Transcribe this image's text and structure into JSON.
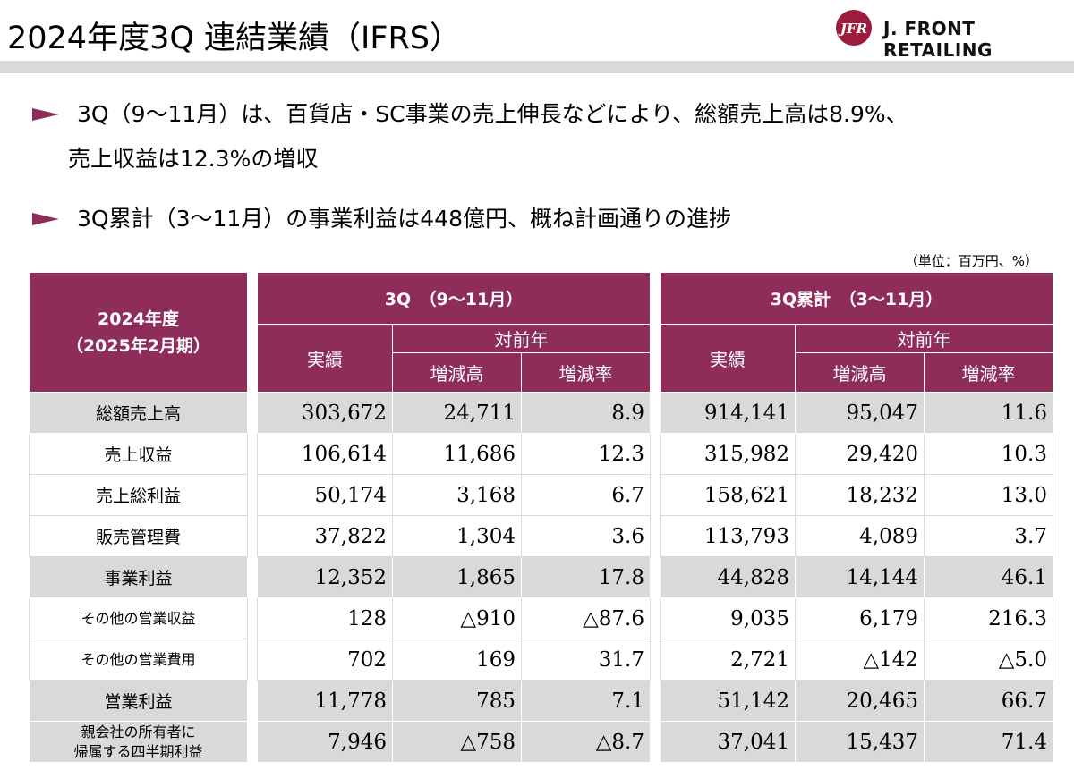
{
  "header": {
    "title": "2024年度3Q 連結業績（IFRS）",
    "logo_mark_text": "JFR",
    "logo_text": "J. FRONT RETAILING"
  },
  "bullets": [
    {
      "line1": "3Q（9～11月）は、百貨店・SC事業の売上伸長などにより、総額売上高は8.9%、",
      "line2": "売上収益は12.3%の増収"
    },
    {
      "line1": "3Q累計（3～11月）の事業利益は448億円、概ね計画通りの進捗"
    }
  ],
  "unit_note": "（単位：百万円、%）",
  "table": {
    "corner_line1": "2024年度",
    "corner_line2": "（2025年2月期）",
    "group1": "3Q　（9～11月）",
    "group2": "3Q累計　（3～11月）",
    "actual": "実績",
    "yoy": "対前年",
    "diff": "増減高",
    "rate": "増減率",
    "rows": [
      {
        "label": "総額売上高",
        "v": [
          "303,672",
          "24,711",
          "8.9",
          "914,141",
          "95,047",
          "11.6"
        ]
      },
      {
        "label": "売上収益",
        "v": [
          "106,614",
          "11,686",
          "12.3",
          "315,982",
          "29,420",
          "10.3"
        ]
      },
      {
        "label": "売上総利益",
        "v": [
          "50,174",
          "3,168",
          "6.7",
          "158,621",
          "18,232",
          "13.0"
        ]
      },
      {
        "label": "販売管理費",
        "v": [
          "37,822",
          "1,304",
          "3.6",
          "113,793",
          "4,089",
          "3.7"
        ]
      },
      {
        "label": "事業利益",
        "v": [
          "12,352",
          "1,865",
          "17.8",
          "44,828",
          "14,144",
          "46.1"
        ]
      },
      {
        "label": "その他の営業収益",
        "v": [
          "128",
          "△910",
          "△87.6",
          "9,035",
          "6,179",
          "216.3"
        ]
      },
      {
        "label": "その他の営業費用",
        "v": [
          "702",
          "169",
          "31.7",
          "2,721",
          "△142",
          "△5.0"
        ]
      },
      {
        "label": "営業利益",
        "v": [
          "11,778",
          "785",
          "7.1",
          "51,142",
          "20,465",
          "66.7"
        ]
      },
      {
        "label": "親会社の所有者に",
        "label2": "帰属する四半期利益",
        "v": [
          "7,946",
          "△758",
          "△8.7",
          "37,041",
          "15,437",
          "71.4"
        ]
      }
    ]
  },
  "colors": {
    "accent": "#8e2d59",
    "shade": "#d9d9d9"
  }
}
